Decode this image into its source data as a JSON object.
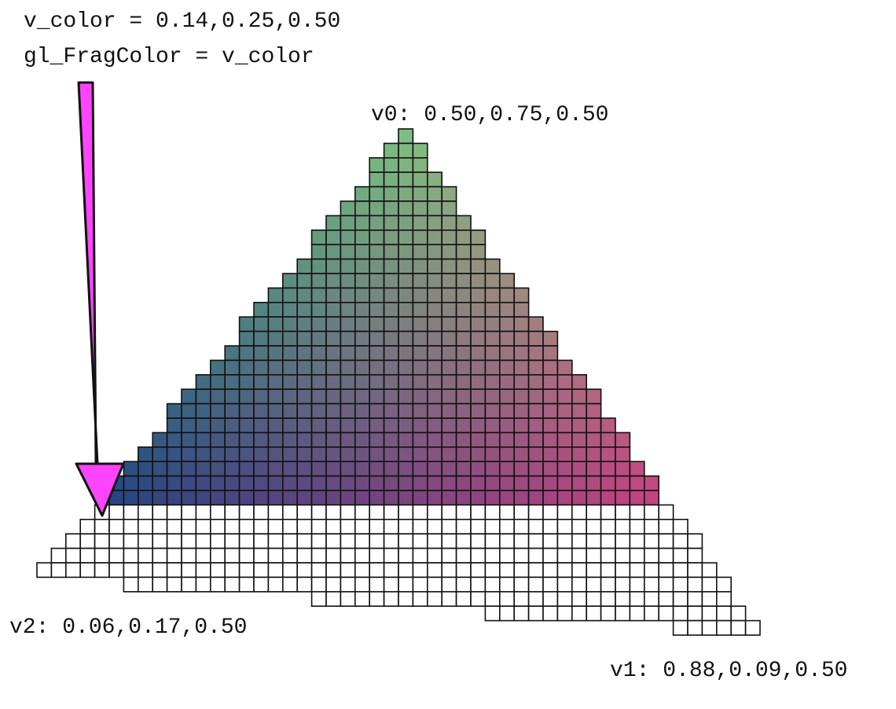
{
  "shader": {
    "line1": "v_color = 0.14,0.25,0.50",
    "line2": "gl_FragColor = v_color"
  },
  "vertices": {
    "v0": {
      "label": "v0: 0.50,0.75,0.50",
      "color": [
        0.5,
        0.75,
        0.5
      ]
    },
    "v1": {
      "label": "v1: 0.88,0.09,0.50",
      "color": [
        0.88,
        0.09,
        0.5
      ]
    },
    "v2": {
      "label": "v2: 0.06,0.17,0.50",
      "color": [
        0.06,
        0.17,
        0.5
      ]
    }
  },
  "colors": {
    "arrow_fill": "#ff44ff",
    "grid_line": "#111111",
    "unrasterized_fill": "#ffffff"
  },
  "icons": {
    "pointer": "arrow-down-icon"
  }
}
